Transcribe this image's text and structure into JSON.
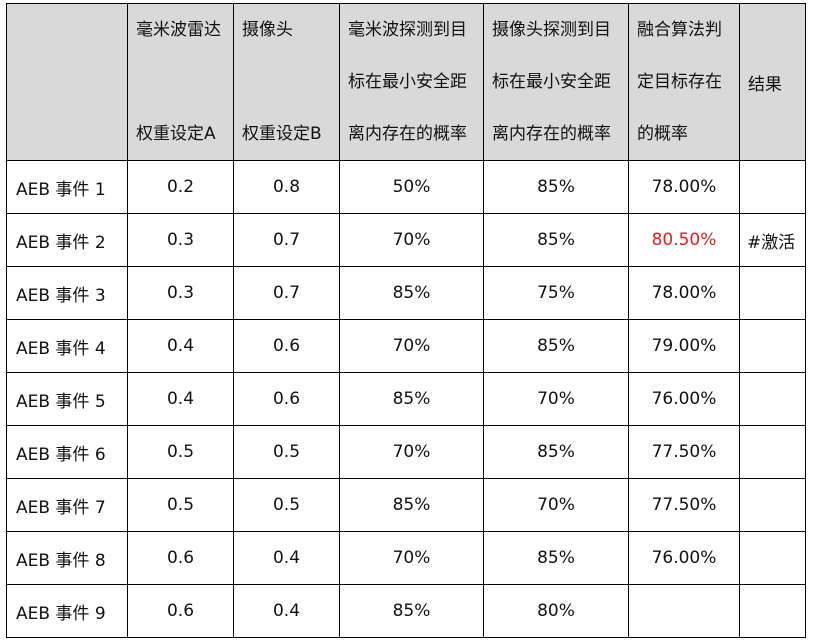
{
  "header": {
    "col0": "",
    "col1": [
      "毫米波雷达",
      "",
      "权重设定A"
    ],
    "col2": [
      "摄像头",
      "",
      "权重设定B"
    ],
    "col3": [
      "毫米波探测到目",
      "标在最小安全距",
      "离内存在的概率"
    ],
    "col4": [
      "摄像头探测到目",
      "标在最小安全距",
      "离内存在的概率"
    ],
    "col5": [
      "融合算法判",
      "定目标存在",
      "的概率"
    ],
    "col6": "结果"
  },
  "rows": [
    {
      "event": "AEB 事件 1",
      "a": "0.2",
      "b": "0.8",
      "radar": "50%",
      "camera": "85%",
      "fusion": "78.00%",
      "result": ""
    },
    {
      "event": "AEB 事件 2",
      "a": "0.3",
      "b": "0.7",
      "radar": "70%",
      "camera": "85%",
      "fusion": "80.50%",
      "result": "#激活"
    },
    {
      "event": "AEB 事件 3",
      "a": "0.3",
      "b": "0.7",
      "radar": "85%",
      "camera": "75%",
      "fusion": "78.00%",
      "result": ""
    },
    {
      "event": "AEB 事件 4",
      "a": "0.4",
      "b": "0.6",
      "radar": "70%",
      "camera": "85%",
      "fusion": "79.00%",
      "result": ""
    },
    {
      "event": "AEB 事件 5",
      "a": "0.4",
      "b": "0.6",
      "radar": "85%",
      "camera": "70%",
      "fusion": "76.00%",
      "result": ""
    },
    {
      "event": "AEB 事件 6",
      "a": "0.5",
      "b": "0.5",
      "radar": "70%",
      "camera": "85%",
      "fusion": "77.50%",
      "result": ""
    },
    {
      "event": "AEB 事件 7",
      "a": "0.5",
      "b": "0.5",
      "radar": "85%",
      "camera": "70%",
      "fusion": "77.50%",
      "result": ""
    },
    {
      "event": "AEB 事件 8",
      "a": "0.6",
      "b": "0.4",
      "radar": "70%",
      "camera": "85%",
      "fusion": "76.00%",
      "result": ""
    },
    {
      "event": "AEB 事件 9",
      "a": "0.6",
      "b": "0.4",
      "radar": "85%",
      "camera": "80%",
      "fusion": "",
      "result": ""
    }
  ],
  "colors": {
    "header_bg": "#d9d9d9",
    "highlight": "#e02020"
  },
  "highlight_row": 1
}
